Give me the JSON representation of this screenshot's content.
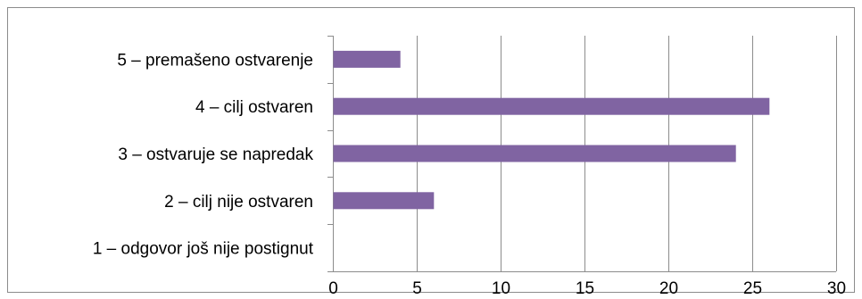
{
  "chart_data": {
    "type": "bar",
    "orientation": "horizontal",
    "categories": [
      "5 – premašeno ostvarenje",
      "4 – cilj ostvaren",
      "3 – ostvaruje se napredak",
      "2 – cilj nije ostvaren",
      "1 – odgovor još nije postignut"
    ],
    "values": [
      4,
      26,
      24,
      6,
      0
    ],
    "xlim": [
      0,
      30
    ],
    "xticks": [
      "0",
      "5",
      "10",
      "15",
      "20",
      "25",
      "30"
    ],
    "title": "",
    "xlabel": "",
    "ylabel": "",
    "grid": "vertical",
    "legend": "none",
    "bar_color": "#8064a2",
    "grid_color": "#8c8c8c"
  }
}
